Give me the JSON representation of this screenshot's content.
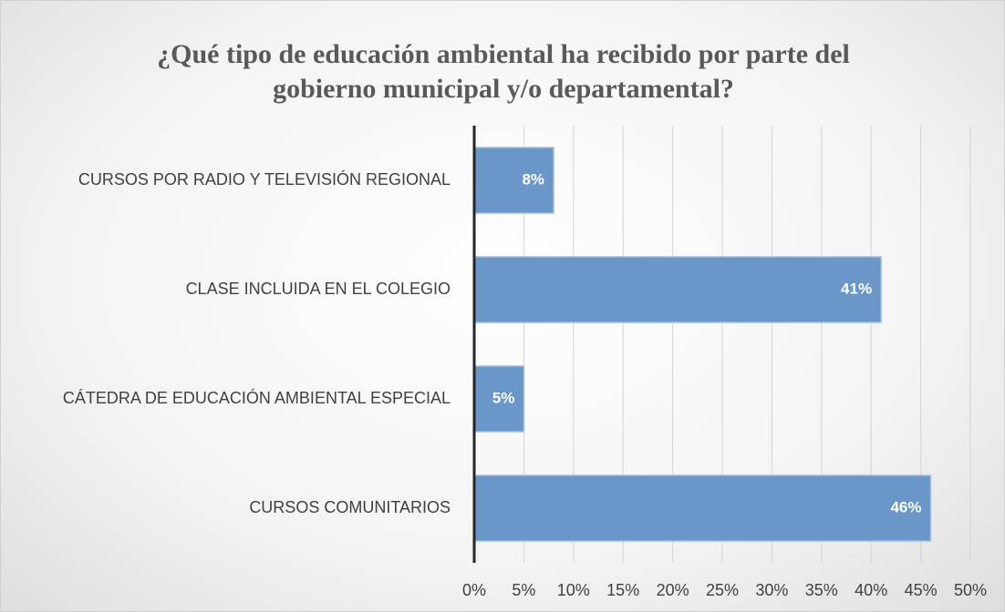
{
  "chart_data": {
    "type": "bar",
    "orientation": "horizontal",
    "title": "¿Qué tipo de educación ambiental ha recibido por parte del gobierno municipal y/o departamental?",
    "categories": [
      "CURSOS POR RADIO Y TELEVISIÓN REGIONAL",
      "CLASE INCLUIDA EN EL COLEGIO",
      "CÁTEDRA DE EDUCACIÓN AMBIENTAL ESPECIAL",
      "CURSOS COMUNITARIOS"
    ],
    "values": [
      8,
      41,
      5,
      46
    ],
    "value_labels": [
      "8%",
      "41%",
      "5%",
      "46%"
    ],
    "color": "#6a96c8",
    "xlim": [
      0,
      50
    ],
    "xticks": [
      {
        "value": 0,
        "label": "0%"
      },
      {
        "value": 5,
        "label": "5%"
      },
      {
        "value": 10,
        "label": "10%"
      },
      {
        "value": 15,
        "label": "15%"
      },
      {
        "value": 20,
        "label": "20%"
      },
      {
        "value": 25,
        "label": "25%"
      },
      {
        "value": 30,
        "label": "30%"
      },
      {
        "value": 35,
        "label": "35%"
      },
      {
        "value": 40,
        "label": "40%"
      },
      {
        "value": 45,
        "label": "45%"
      },
      {
        "value": 50,
        "label": "50%"
      }
    ],
    "grid": true
  }
}
